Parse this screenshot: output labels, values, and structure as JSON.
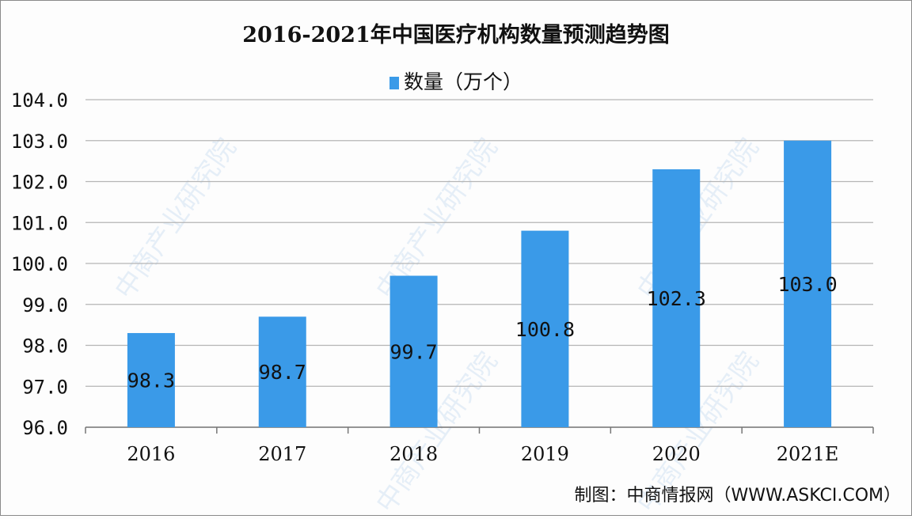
{
  "chart_data": {
    "type": "bar",
    "title": "2016-2021年中国医疗机构数量预测趋势图",
    "legend": {
      "label": "数量（万个）",
      "placement": "top"
    },
    "categories": [
      "2016",
      "2017",
      "2018",
      "2019",
      "2020",
      "2021E"
    ],
    "series": [
      {
        "name": "数量（万个）",
        "values": [
          98.3,
          98.7,
          99.7,
          100.8,
          102.3,
          103.0
        ]
      }
    ],
    "data_labels": [
      "98.3",
      "98.7",
      "99.7",
      "100.8",
      "102.3",
      "103.0"
    ],
    "ylim": [
      96,
      104
    ],
    "yticks": [
      "96.0",
      "97.0",
      "98.0",
      "99.0",
      "100.0",
      "101.0",
      "102.0",
      "103.0",
      "104.0"
    ],
    "grid": true,
    "bar_color": "#3a9ae8",
    "xlabel": "",
    "ylabel": ""
  },
  "source": "制图：中商情报网（WWW.ASKCI.COM）",
  "watermark": "中商产业研究院"
}
